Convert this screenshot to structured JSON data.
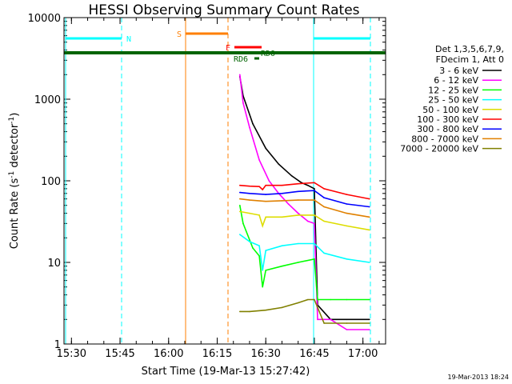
{
  "chart_data": {
    "type": "line",
    "title": "HESSI Observing Summary Count Rates",
    "xlabel": "Start Time (19-Mar-13 15:27:42)",
    "ylabel": "Count Rate (s⁻¹ detector⁻¹)",
    "ylabel_parts": {
      "a": "Count Rate (s",
      "b": "-1",
      "c": " detector",
      "d": "-1",
      "e": ")"
    },
    "y_scale": "log",
    "ylim": [
      1,
      10000
    ],
    "xlim": [
      "15:27:42",
      "17:07:00"
    ],
    "x_ticks": [
      "15:30",
      "15:45",
      "16:00",
      "16:15",
      "16:30",
      "16:45",
      "17:00"
    ],
    "y_ticks": [
      "1",
      "10",
      "100",
      "1000",
      "10000"
    ],
    "legend_header": [
      "Det 1,3,5,6,7,9,",
      "FDecim 1, Att 0"
    ],
    "legend_position": "right",
    "timestamp": "19-Mar-2013 18:24",
    "flags": [
      {
        "label": "N",
        "color": "#00ffff"
      },
      {
        "label": "S",
        "color": "#ff7f00"
      },
      {
        "label": "F",
        "color": "#ff0000"
      },
      {
        "label": "RDO",
        "color": "#006400"
      },
      {
        "label": "RD6",
        "color": "#006400"
      }
    ],
    "series": [
      {
        "name": "3 - 6 keV",
        "color": "#000000",
        "x": [
          "16:22",
          "16:23",
          "16:26",
          "16:30",
          "16:34",
          "16:38",
          "16:41",
          "16:43",
          "16:45",
          "16:46",
          "16:50",
          "16:55",
          "17:02"
        ],
        "values": [
          1900,
          1100,
          500,
          250,
          160,
          115,
          95,
          88,
          80,
          3,
          2,
          2,
          2
        ]
      },
      {
        "name": "6 - 12 keV",
        "color": "#ff00ff",
        "x": [
          "16:22",
          "16:23",
          "16:25",
          "16:28",
          "16:31",
          "16:34",
          "16:37",
          "16:40",
          "16:43",
          "16:45",
          "16:46",
          "16:50",
          "16:55",
          "17:02"
        ],
        "values": [
          2000,
          900,
          450,
          180,
          100,
          70,
          52,
          40,
          32,
          30,
          2,
          2,
          1.5,
          1.5
        ]
      },
      {
        "name": "12 - 25 keV",
        "color": "#00ff00",
        "x": [
          "16:22",
          "16:23",
          "16:26",
          "16:28",
          "16:29",
          "16:30",
          "16:35",
          "16:40",
          "16:45",
          "16:46",
          "16:50",
          "16:55",
          "17:02"
        ],
        "values": [
          50,
          30,
          15,
          12,
          5,
          8,
          9,
          10,
          11,
          3.5,
          3.5,
          3.5,
          3.5
        ]
      },
      {
        "name": "25 - 50 keV",
        "color": "#00ffff",
        "x": [
          "16:22",
          "16:25",
          "16:28",
          "16:29",
          "16:30",
          "16:35",
          "16:40",
          "16:45",
          "16:48",
          "16:55",
          "17:02"
        ],
        "values": [
          22,
          18,
          16,
          8,
          14,
          16,
          17,
          17,
          13,
          11,
          10
        ]
      },
      {
        "name": "50 - 100 keV",
        "color": "#dddd00",
        "x": [
          "16:22",
          "16:25",
          "16:28",
          "16:29",
          "16:30",
          "16:35",
          "16:40",
          "16:45",
          "16:48",
          "16:55",
          "17:02"
        ],
        "values": [
          42,
          40,
          38,
          28,
          36,
          36,
          38,
          38,
          32,
          28,
          25
        ]
      },
      {
        "name": "100 - 300 keV",
        "color": "#ff0000",
        "x": [
          "16:22",
          "16:25",
          "16:28",
          "16:29",
          "16:30",
          "16:35",
          "16:40",
          "16:45",
          "16:48",
          "16:55",
          "17:02"
        ],
        "values": [
          88,
          86,
          85,
          78,
          88,
          88,
          92,
          95,
          80,
          68,
          60
        ]
      },
      {
        "name": "300 - 800 keV",
        "color": "#0000ff",
        "x": [
          "16:22",
          "16:25",
          "16:30",
          "16:35",
          "16:40",
          "16:45",
          "16:48",
          "16:55",
          "17:02"
        ],
        "values": [
          72,
          70,
          68,
          70,
          74,
          76,
          62,
          52,
          48
        ]
      },
      {
        "name": "800 - 7000 keV",
        "color": "#e08000",
        "x": [
          "16:22",
          "16:25",
          "16:30",
          "16:35",
          "16:40",
          "16:45",
          "16:48",
          "16:55",
          "17:02"
        ],
        "values": [
          60,
          58,
          56,
          57,
          58,
          58,
          48,
          40,
          36
        ]
      },
      {
        "name": "7000 - 20000 keV",
        "color": "#808000",
        "x": [
          "16:22",
          "16:25",
          "16:30",
          "16:35",
          "16:40",
          "16:43",
          "16:45",
          "16:48",
          "16:55",
          "17:02"
        ],
        "values": [
          2.5,
          2.5,
          2.6,
          2.8,
          3.2,
          3.5,
          3.5,
          1.8,
          1.8,
          1.8
        ]
      }
    ]
  }
}
